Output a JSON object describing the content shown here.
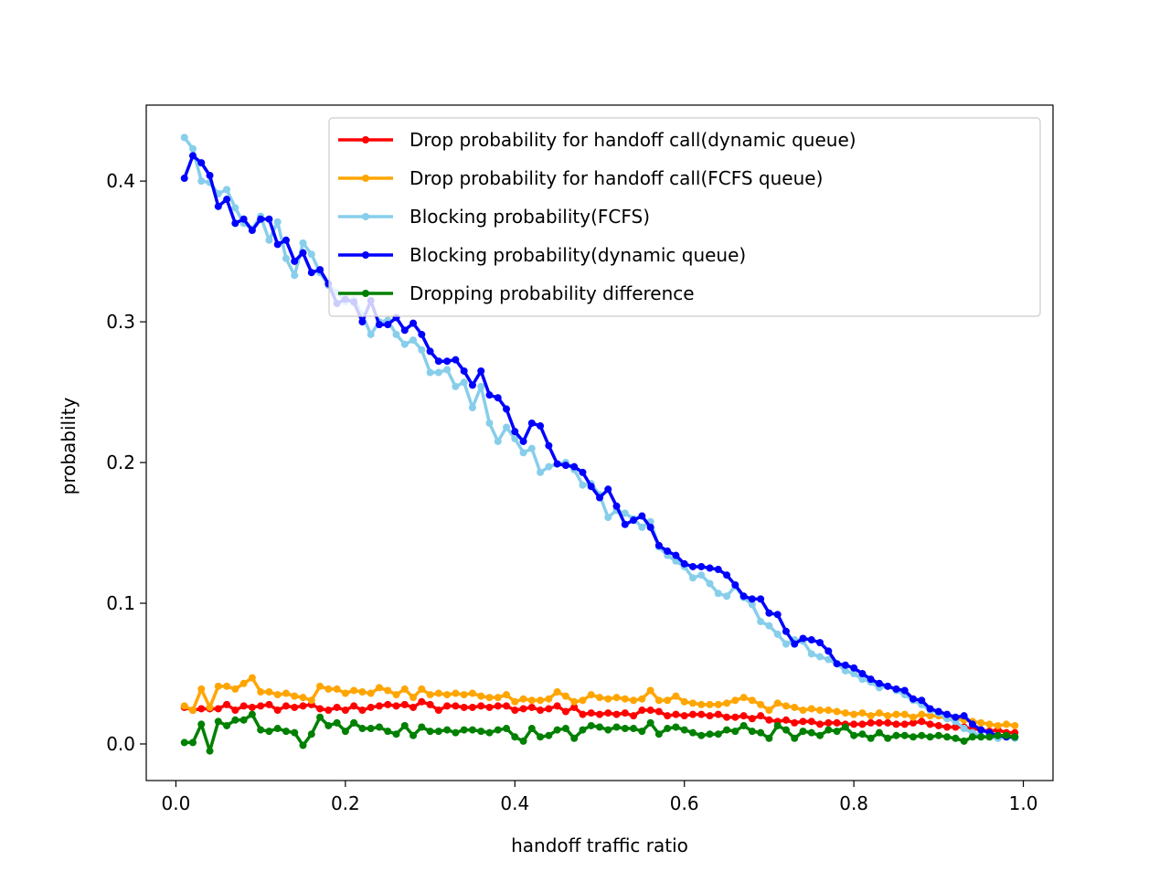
{
  "chart_data": {
    "type": "line",
    "title": "",
    "xlabel": "handoff traffic ratio",
    "ylabel": "probability",
    "xlim": [
      -0.035,
      1.035
    ],
    "ylim": [
      -0.026,
      0.454
    ],
    "xticks": [
      {
        "value": 0.0,
        "label": "0.0"
      },
      {
        "value": 0.2,
        "label": "0.2"
      },
      {
        "value": 0.4,
        "label": "0.4"
      },
      {
        "value": 0.6,
        "label": "0.6"
      },
      {
        "value": 0.8,
        "label": "0.8"
      },
      {
        "value": 1.0,
        "label": "1.0"
      }
    ],
    "yticks": [
      {
        "value": 0.0,
        "label": "0.0"
      },
      {
        "value": 0.1,
        "label": "0.1"
      },
      {
        "value": 0.2,
        "label": "0.2"
      },
      {
        "value": 0.3,
        "label": "0.3"
      },
      {
        "value": 0.4,
        "label": "0.4"
      }
    ],
    "grid": false,
    "legend_position": "top-right",
    "x": [
      0.01,
      0.02,
      0.03,
      0.04,
      0.05,
      0.06,
      0.07,
      0.08,
      0.09,
      0.1,
      0.11,
      0.12,
      0.13,
      0.14,
      0.15,
      0.16,
      0.17,
      0.18,
      0.19,
      0.2,
      0.21,
      0.22,
      0.23,
      0.24,
      0.25,
      0.26,
      0.27,
      0.28,
      0.29,
      0.3,
      0.31,
      0.32,
      0.33,
      0.34,
      0.35,
      0.36,
      0.37,
      0.38,
      0.39,
      0.4,
      0.41,
      0.42,
      0.43,
      0.44,
      0.45,
      0.46,
      0.47,
      0.48,
      0.49,
      0.5,
      0.51,
      0.52,
      0.53,
      0.54,
      0.55,
      0.56,
      0.57,
      0.58,
      0.59,
      0.6,
      0.61,
      0.62,
      0.63,
      0.64,
      0.65,
      0.66,
      0.67,
      0.68,
      0.69,
      0.7,
      0.71,
      0.72,
      0.73,
      0.74,
      0.75,
      0.76,
      0.77,
      0.78,
      0.79,
      0.8,
      0.81,
      0.82,
      0.83,
      0.84,
      0.85,
      0.86,
      0.87,
      0.88,
      0.89,
      0.9,
      0.91,
      0.92,
      0.93,
      0.94,
      0.95,
      0.96,
      0.97,
      0.98,
      0.99
    ],
    "series": [
      {
        "name": "Drop probability for handoff call(dynamic queue)",
        "color": "#ff0000",
        "values": [
          0.026,
          0.024,
          0.025,
          0.025,
          0.025,
          0.028,
          0.024,
          0.027,
          0.026,
          0.027,
          0.028,
          0.024,
          0.027,
          0.026,
          0.027,
          0.028,
          0.025,
          0.024,
          0.026,
          0.024,
          0.027,
          0.024,
          0.026,
          0.027,
          0.028,
          0.027,
          0.028,
          0.026,
          0.03,
          0.028,
          0.024,
          0.027,
          0.027,
          0.026,
          0.026,
          0.027,
          0.026,
          0.027,
          0.027,
          0.024,
          0.025,
          0.026,
          0.024,
          0.025,
          0.027,
          0.023,
          0.026,
          0.021,
          0.022,
          0.021,
          0.022,
          0.021,
          0.022,
          0.02,
          0.024,
          0.024,
          0.023,
          0.02,
          0.021,
          0.02,
          0.021,
          0.021,
          0.02,
          0.021,
          0.019,
          0.019,
          0.02,
          0.018,
          0.02,
          0.017,
          0.016,
          0.017,
          0.015,
          0.016,
          0.016,
          0.014,
          0.015,
          0.015,
          0.014,
          0.014,
          0.014,
          0.015,
          0.015,
          0.015,
          0.014,
          0.014,
          0.015,
          0.016,
          0.014,
          0.013,
          0.012,
          0.012,
          0.012,
          0.011,
          0.01,
          0.009,
          0.01,
          0.008,
          0.008
        ]
      },
      {
        "name": "Drop probability for handoff call(FCFS queue)",
        "color": "#ffa500",
        "values": [
          0.027,
          0.024,
          0.039,
          0.026,
          0.041,
          0.041,
          0.039,
          0.043,
          0.047,
          0.037,
          0.037,
          0.035,
          0.036,
          0.034,
          0.033,
          0.031,
          0.041,
          0.039,
          0.039,
          0.036,
          0.038,
          0.037,
          0.036,
          0.04,
          0.038,
          0.035,
          0.039,
          0.033,
          0.039,
          0.035,
          0.036,
          0.035,
          0.036,
          0.035,
          0.036,
          0.034,
          0.033,
          0.033,
          0.035,
          0.03,
          0.032,
          0.031,
          0.031,
          0.032,
          0.037,
          0.034,
          0.03,
          0.031,
          0.035,
          0.033,
          0.032,
          0.033,
          0.032,
          0.031,
          0.032,
          0.038,
          0.031,
          0.031,
          0.034,
          0.03,
          0.029,
          0.028,
          0.028,
          0.028,
          0.029,
          0.031,
          0.033,
          0.031,
          0.028,
          0.024,
          0.029,
          0.027,
          0.026,
          0.024,
          0.025,
          0.024,
          0.024,
          0.023,
          0.022,
          0.021,
          0.022,
          0.02,
          0.022,
          0.02,
          0.021,
          0.021,
          0.019,
          0.021,
          0.02,
          0.02,
          0.018,
          0.018,
          0.017,
          0.016,
          0.015,
          0.014,
          0.013,
          0.014,
          0.013
        ]
      },
      {
        "name": "Blocking probability(FCFS)",
        "color": "#87ceeb",
        "values": [
          0.431,
          0.423,
          0.4,
          0.399,
          0.391,
          0.394,
          0.381,
          0.37,
          0.366,
          0.375,
          0.358,
          0.371,
          0.345,
          0.333,
          0.356,
          0.348,
          0.335,
          0.326,
          0.321,
          0.314,
          0.316,
          0.305,
          0.291,
          0.3,
          0.301,
          0.291,
          0.284,
          0.287,
          0.28,
          0.264,
          0.264,
          0.266,
          0.254,
          0.257,
          0.239,
          0.254,
          0.228,
          0.215,
          0.225,
          0.217,
          0.207,
          0.21,
          0.193,
          0.197,
          0.199,
          0.2,
          0.195,
          0.184,
          0.185,
          0.177,
          0.161,
          0.166,
          0.164,
          0.16,
          0.154,
          0.158,
          0.14,
          0.134,
          0.13,
          0.126,
          0.118,
          0.12,
          0.114,
          0.107,
          0.105,
          0.112,
          0.104,
          0.099,
          0.087,
          0.084,
          0.078,
          0.071,
          0.074,
          0.073,
          0.064,
          0.062,
          0.06,
          0.057,
          0.052,
          0.05,
          0.046,
          0.044,
          0.04,
          0.041,
          0.038,
          0.035,
          0.031,
          0.028,
          0.024,
          0.022,
          0.018,
          0.016,
          0.011,
          0.008,
          0.006,
          0.005,
          0.004,
          0.005,
          0.004
        ]
      },
      {
        "name": "Blocking probability(dynamic queue)",
        "color": "#0000ff",
        "values": [
          0.402,
          0.418,
          0.413,
          0.404,
          0.382,
          0.387,
          0.37,
          0.373,
          0.365,
          0.373,
          0.373,
          0.355,
          0.358,
          0.343,
          0.349,
          0.335,
          0.337,
          0.327,
          0.313,
          0.316,
          0.314,
          0.3,
          0.315,
          0.298,
          0.298,
          0.303,
          0.294,
          0.299,
          0.291,
          0.279,
          0.272,
          0.272,
          0.273,
          0.265,
          0.255,
          0.265,
          0.248,
          0.246,
          0.238,
          0.222,
          0.215,
          0.228,
          0.226,
          0.212,
          0.199,
          0.198,
          0.197,
          0.193,
          0.183,
          0.175,
          0.181,
          0.169,
          0.156,
          0.159,
          0.162,
          0.154,
          0.141,
          0.137,
          0.134,
          0.128,
          0.126,
          0.126,
          0.125,
          0.124,
          0.12,
          0.113,
          0.105,
          0.103,
          0.103,
          0.093,
          0.092,
          0.08,
          0.071,
          0.075,
          0.074,
          0.072,
          0.066,
          0.057,
          0.056,
          0.054,
          0.05,
          0.046,
          0.043,
          0.041,
          0.039,
          0.038,
          0.032,
          0.031,
          0.025,
          0.023,
          0.021,
          0.019,
          0.02,
          0.014,
          0.01,
          0.008,
          0.006,
          0.005,
          0.005
        ]
      },
      {
        "name": "Dropping probability difference",
        "color": "#008000",
        "values": [
          0.001,
          0.001,
          0.014,
          -0.005,
          0.016,
          0.013,
          0.017,
          0.017,
          0.021,
          0.01,
          0.009,
          0.011,
          0.009,
          0.008,
          -0.001,
          0.007,
          0.019,
          0.013,
          0.015,
          0.009,
          0.015,
          0.011,
          0.011,
          0.012,
          0.009,
          0.007,
          0.013,
          0.006,
          0.012,
          0.009,
          0.009,
          0.01,
          0.008,
          0.01,
          0.01,
          0.009,
          0.008,
          0.01,
          0.011,
          0.005,
          0.002,
          0.011,
          0.005,
          0.006,
          0.01,
          0.011,
          0.004,
          0.01,
          0.013,
          0.012,
          0.01,
          0.012,
          0.011,
          0.011,
          0.009,
          0.015,
          0.007,
          0.011,
          0.012,
          0.01,
          0.008,
          0.006,
          0.007,
          0.007,
          0.01,
          0.009,
          0.013,
          0.009,
          0.008,
          0.004,
          0.013,
          0.01,
          0.004,
          0.009,
          0.008,
          0.006,
          0.01,
          0.009,
          0.012,
          0.006,
          0.007,
          0.004,
          0.008,
          0.004,
          0.006,
          0.006,
          0.005,
          0.006,
          0.005,
          0.006,
          0.005,
          0.004,
          0.002,
          0.005,
          0.005,
          0.005,
          0.006,
          0.006,
          0.005
        ]
      }
    ]
  }
}
